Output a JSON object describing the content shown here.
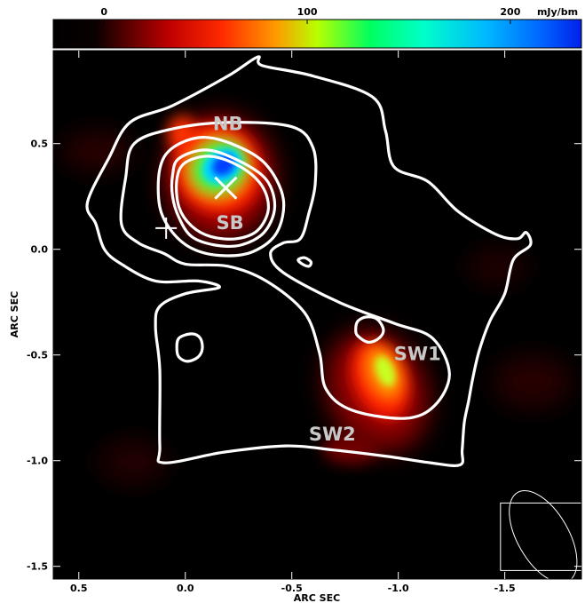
{
  "colorbar": {
    "unit_label": "mJy/bm",
    "range": [
      -25,
      235
    ],
    "ticks": [
      {
        "value": 0,
        "label": "0"
      },
      {
        "value": 100,
        "label": "100"
      },
      {
        "value": 200,
        "label": "200"
      }
    ]
  },
  "chart_data": {
    "type": "heatmap",
    "title": "",
    "xlabel": "ARC SEC",
    "ylabel": "ARC SEC",
    "xlim": [
      0.62,
      -1.86
    ],
    "ylim": [
      -1.56,
      0.94
    ],
    "x_ticks": [
      {
        "value": 0.5,
        "label": "0.5"
      },
      {
        "value": 0.0,
        "label": "0.0"
      },
      {
        "value": -0.5,
        "label": "-0.5"
      },
      {
        "value": -1.0,
        "label": "-1.0"
      },
      {
        "value": -1.5,
        "label": "-1.5"
      }
    ],
    "y_ticks": [
      {
        "value": 0.5,
        "label": "0.5"
      },
      {
        "value": 0.0,
        "label": "0.0"
      },
      {
        "value": -0.5,
        "label": "-0.5"
      },
      {
        "value": -1.0,
        "label": "-1.0"
      },
      {
        "value": -1.5,
        "label": "-1.5"
      }
    ],
    "emission_peaks": [
      {
        "name": "NB",
        "x": -0.17,
        "y": 0.38,
        "peak": 235
      },
      {
        "name": "SW1",
        "x": -0.93,
        "y": -0.58,
        "peak": 80
      }
    ],
    "source_labels": [
      {
        "text": "NB",
        "x": -0.2,
        "y": 0.59
      },
      {
        "text": "SB",
        "x": -0.21,
        "y": 0.12
      },
      {
        "text": "SW1",
        "x": -1.09,
        "y": -0.5
      },
      {
        "text": "SW2",
        "x": -0.69,
        "y": -0.88
      }
    ],
    "markers": [
      {
        "type": "x",
        "x": -0.19,
        "y": 0.29
      },
      {
        "type": "plus",
        "x": 0.09,
        "y": 0.1
      }
    ],
    "contours": [
      {
        "level": "outer",
        "points": [
          [
            0.46,
            0.22
          ],
          [
            0.36,
            0.43
          ],
          [
            0.26,
            0.6
          ],
          [
            0.06,
            0.68
          ],
          [
            -0.2,
            0.82
          ],
          [
            -0.34,
            0.91
          ],
          [
            -0.36,
            0.87
          ],
          [
            -0.6,
            0.82
          ],
          [
            -0.88,
            0.72
          ],
          [
            -0.94,
            0.56
          ],
          [
            -0.98,
            0.39
          ],
          [
            -1.14,
            0.32
          ],
          [
            -1.28,
            0.18
          ],
          [
            -1.46,
            0.07
          ],
          [
            -1.56,
            0.05
          ],
          [
            -1.6,
            0.08
          ],
          [
            -1.62,
            0.02
          ],
          [
            -1.54,
            -0.05
          ],
          [
            -1.5,
            -0.21
          ],
          [
            -1.43,
            -0.34
          ],
          [
            -1.38,
            -0.48
          ],
          [
            -1.35,
            -0.61
          ],
          [
            -1.33,
            -0.72
          ],
          [
            -1.31,
            -0.82
          ],
          [
            -1.3,
            -0.95
          ],
          [
            -1.29,
            -1.02
          ],
          [
            -1.15,
            -1.01
          ],
          [
            -0.95,
            -0.98
          ],
          [
            -0.7,
            -0.95
          ],
          [
            -0.47,
            -0.93
          ],
          [
            -0.18,
            -0.96
          ],
          [
            0.1,
            -1.01
          ],
          [
            0.12,
            -0.93
          ],
          [
            0.12,
            -0.57
          ],
          [
            0.14,
            -0.37
          ],
          [
            0.12,
            -0.27
          ],
          [
            0.0,
            -0.21
          ],
          [
            -0.16,
            -0.18
          ],
          [
            -0.06,
            -0.15
          ],
          [
            0.14,
            -0.15
          ],
          [
            0.3,
            -0.07
          ],
          [
            0.38,
            0.0
          ],
          [
            0.42,
            0.12
          ],
          [
            0.46,
            0.22
          ]
        ]
      },
      {
        "level": "mid",
        "points": [
          [
            0.3,
            0.12
          ],
          [
            0.28,
            0.34
          ],
          [
            0.24,
            0.5
          ],
          [
            0.06,
            0.57
          ],
          [
            -0.2,
            0.6
          ],
          [
            -0.5,
            0.58
          ],
          [
            -0.6,
            0.48
          ],
          [
            -0.61,
            0.31
          ],
          [
            -0.58,
            0.17
          ],
          [
            -0.54,
            0.05
          ],
          [
            -0.46,
            0.03
          ],
          [
            -0.4,
            -0.02
          ],
          [
            -0.46,
            -0.11
          ],
          [
            -0.72,
            -0.25
          ],
          [
            -0.98,
            -0.35
          ],
          [
            -1.16,
            -0.42
          ],
          [
            -1.24,
            -0.59
          ],
          [
            -1.17,
            -0.74
          ],
          [
            -1.03,
            -0.8
          ],
          [
            -0.78,
            -0.76
          ],
          [
            -0.66,
            -0.66
          ],
          [
            -0.63,
            -0.49
          ],
          [
            -0.56,
            -0.3
          ],
          [
            -0.38,
            -0.15
          ],
          [
            -0.2,
            -0.08
          ],
          [
            0.0,
            -0.07
          ],
          [
            0.1,
            -0.02
          ],
          [
            0.22,
            0.03
          ],
          [
            0.3,
            0.12
          ]
        ]
      },
      {
        "level": "inner1",
        "points": [
          [
            0.12,
            0.38
          ],
          [
            0.06,
            0.48
          ],
          [
            -0.08,
            0.53
          ],
          [
            -0.24,
            0.49
          ],
          [
            -0.38,
            0.4
          ],
          [
            -0.46,
            0.24
          ],
          [
            -0.43,
            0.08
          ],
          [
            -0.32,
            -0.01
          ],
          [
            -0.18,
            -0.03
          ],
          [
            -0.04,
            0.0
          ],
          [
            0.06,
            0.08
          ],
          [
            0.12,
            0.2
          ],
          [
            0.12,
            0.38
          ]
        ]
      },
      {
        "level": "inner2",
        "points": [
          [
            0.06,
            0.35
          ],
          [
            0.03,
            0.43
          ],
          [
            -0.1,
            0.47
          ],
          [
            -0.25,
            0.42
          ],
          [
            -0.38,
            0.33
          ],
          [
            -0.42,
            0.2
          ],
          [
            -0.37,
            0.08
          ],
          [
            -0.26,
            0.02
          ],
          [
            -0.14,
            0.02
          ],
          [
            -0.03,
            0.06
          ],
          [
            0.03,
            0.15
          ],
          [
            0.06,
            0.25
          ],
          [
            0.06,
            0.35
          ]
        ]
      },
      {
        "level": "inner3",
        "points": [
          [
            0.04,
            0.33
          ],
          [
            0.0,
            0.41
          ],
          [
            -0.12,
            0.44
          ],
          [
            -0.26,
            0.39
          ],
          [
            -0.36,
            0.3
          ],
          [
            -0.39,
            0.19
          ],
          [
            -0.34,
            0.09
          ],
          [
            -0.24,
            0.05
          ],
          [
            -0.12,
            0.06
          ],
          [
            -0.03,
            0.11
          ],
          [
            0.03,
            0.2
          ],
          [
            0.04,
            0.33
          ]
        ]
      },
      {
        "level": "island-left",
        "points": [
          [
            0.03,
            -0.42
          ],
          [
            0.04,
            -0.47
          ],
          [
            0.03,
            -0.51
          ],
          [
            -0.01,
            -0.53
          ],
          [
            -0.06,
            -0.51
          ],
          [
            -0.08,
            -0.47
          ],
          [
            -0.07,
            -0.42
          ],
          [
            -0.03,
            -0.4
          ],
          [
            0.03,
            -0.42
          ]
        ]
      },
      {
        "level": "island-sw",
        "points": [
          [
            -0.8,
            -0.38
          ],
          [
            -0.81,
            -0.41
          ],
          [
            -0.86,
            -0.44
          ],
          [
            -0.91,
            -0.42
          ],
          [
            -0.93,
            -0.38
          ],
          [
            -0.9,
            -0.33
          ],
          [
            -0.85,
            -0.32
          ],
          [
            -0.81,
            -0.34
          ],
          [
            -0.8,
            -0.38
          ]
        ]
      },
      {
        "level": "island-small",
        "points": [
          [
            -0.53,
            -0.05
          ],
          [
            -0.55,
            -0.07
          ],
          [
            -0.58,
            -0.08
          ],
          [
            -0.59,
            -0.06
          ],
          [
            -0.56,
            -0.04
          ],
          [
            -0.53,
            -0.05
          ]
        ]
      }
    ],
    "beam": {
      "x": -1.68,
      "y": -1.36,
      "major": 0.24,
      "minor": 0.12,
      "pa_deg": 30
    }
  }
}
